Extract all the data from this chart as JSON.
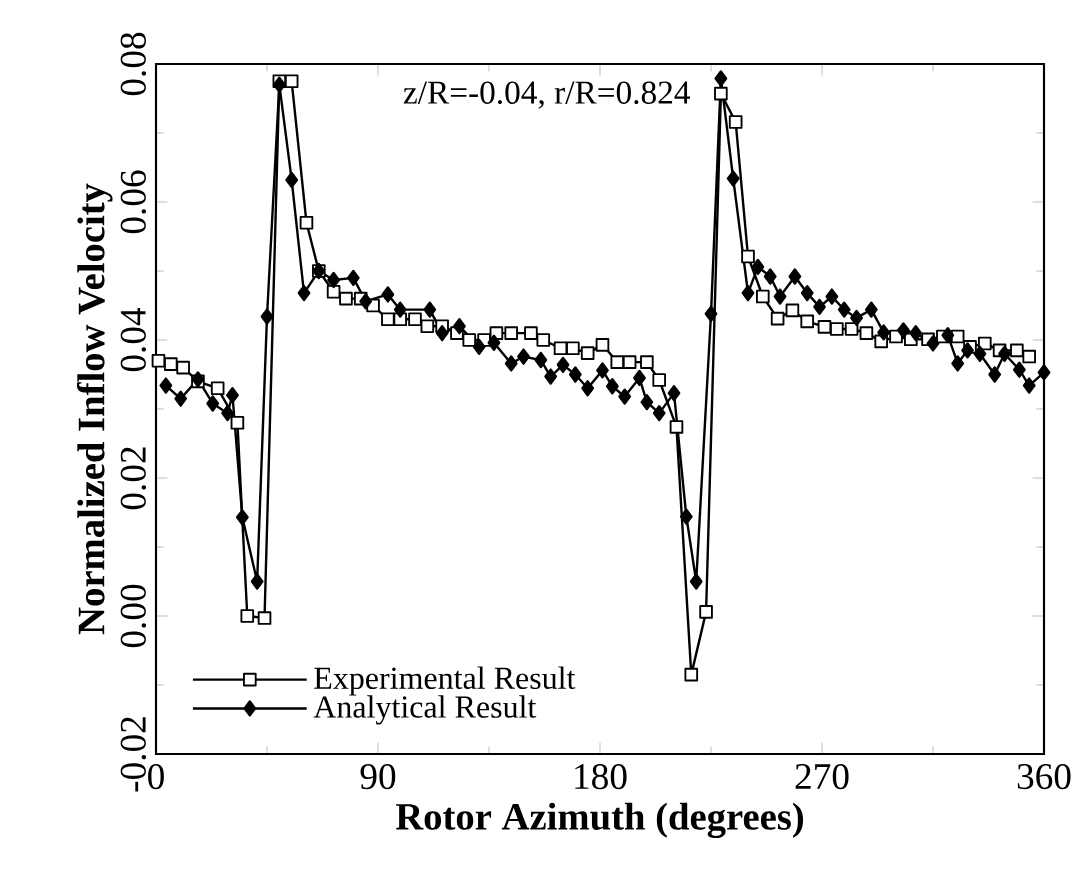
{
  "chart_data": {
    "type": "line",
    "xlabel": "Rotor Azimuth (degrees)",
    "ylabel": "Normalized Inflow Velocity",
    "annotations": [
      "z/R=-0.04, r/R=0.824"
    ],
    "xlim": [
      0,
      360
    ],
    "xticks": [
      0,
      90,
      180,
      270,
      360
    ],
    "ylim": [
      -0.02,
      0.08
    ],
    "yticks": [
      {
        "value": -0.02,
        "label": "-0.02"
      },
      {
        "value": 0,
        "label": "0.00"
      },
      {
        "value": 0.02,
        "label": "0.02"
      },
      {
        "value": 0.04,
        "label": "0.04"
      },
      {
        "value": 0.06,
        "label": "0.06"
      },
      {
        "value": 0.08,
        "label": "0.08"
      }
    ],
    "legend": "bottom left",
    "grid": false,
    "line_style": "solid",
    "series": [
      {
        "name": "Experimental Result",
        "color": "#000000",
        "marker": "square",
        "x": [
          1,
          6,
          11,
          17,
          25,
          33,
          37,
          44,
          50,
          55,
          61,
          66,
          72,
          77,
          83,
          88,
          94,
          99,
          105,
          110,
          116,
          122,
          127,
          133,
          138,
          144,
          152,
          157,
          164,
          169,
          175,
          181,
          187,
          192,
          199,
          204,
          211,
          217,
          223,
          229,
          235,
          240,
          246,
          252,
          258,
          264,
          271,
          276,
          282,
          288,
          294,
          300,
          306,
          313,
          319,
          325,
          330,
          336,
          342,
          349,
          354
        ],
        "values": [
          0.037,
          0.0365,
          0.036,
          0.034,
          0.033,
          0.028,
          0.0,
          -0.0003,
          0.0775,
          0.0775,
          0.057,
          0.05,
          0.047,
          0.046,
          0.046,
          0.045,
          0.043,
          0.043,
          0.043,
          0.042,
          0.042,
          0.041,
          0.04,
          0.04,
          0.041,
          0.041,
          0.041,
          0.04,
          0.0388,
          0.0388,
          0.0381,
          0.0393,
          0.0368,
          0.0368,
          0.0368,
          0.0342,
          0.0274,
          -0.0085,
          0.0006,
          0.0757,
          0.0716,
          0.0521,
          0.0463,
          0.0431,
          0.0443,
          0.0427,
          0.0419,
          0.0416,
          0.0416,
          0.041,
          0.0398,
          0.0405,
          0.0401,
          0.0401,
          0.0405,
          0.0405,
          0.039,
          0.0395,
          0.0385,
          0.0385,
          0.0376
        ]
      },
      {
        "name": "Analytical Result",
        "color": "#000000",
        "marker": "diamond",
        "x": [
          4,
          10,
          17,
          23,
          29,
          31,
          35,
          41,
          45,
          50,
          55,
          60,
          66,
          72,
          80,
          85,
          94,
          99,
          111,
          116,
          123,
          131,
          137,
          144,
          149,
          156,
          160,
          165,
          170,
          175,
          181,
          185,
          190,
          196,
          199,
          204,
          210,
          215,
          219,
          225,
          229,
          234,
          240,
          244,
          249,
          253,
          259,
          264,
          269,
          274,
          279,
          284,
          290,
          295,
          303,
          308,
          315,
          321,
          325,
          329,
          334,
          340,
          344,
          350,
          354,
          360
        ],
        "values": [
          0.0334,
          0.0315,
          0.0343,
          0.0308,
          0.0294,
          0.032,
          0.0143,
          0.005,
          0.0434,
          0.077,
          0.0632,
          0.0468,
          0.05,
          0.0487,
          0.049,
          0.0456,
          0.0466,
          0.0444,
          0.0444,
          0.041,
          0.042,
          0.039,
          0.0396,
          0.0366,
          0.0376,
          0.0371,
          0.0347,
          0.0364,
          0.035,
          0.033,
          0.0356,
          0.0333,
          0.0318,
          0.0345,
          0.031,
          0.0294,
          0.0323,
          0.0144,
          0.005,
          0.0438,
          0.0779,
          0.0634,
          0.0468,
          0.0506,
          0.0492,
          0.0463,
          0.0492,
          0.0468,
          0.0448,
          0.0463,
          0.0444,
          0.0432,
          0.0444,
          0.0411,
          0.0414,
          0.041,
          0.0395,
          0.0407,
          0.0366,
          0.0385,
          0.038,
          0.035,
          0.038,
          0.0357,
          0.0334,
          0.0353
        ]
      }
    ]
  }
}
